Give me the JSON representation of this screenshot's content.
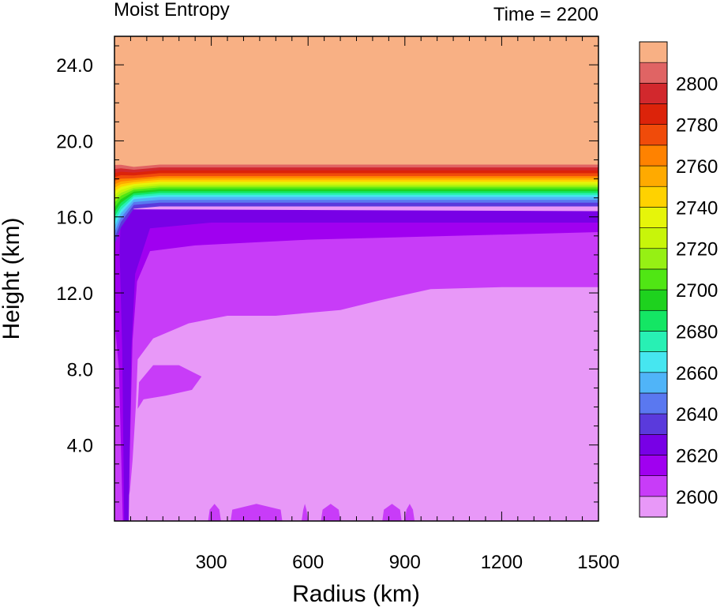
{
  "chart_data": {
    "type": "filled-contour",
    "title_left": "Moist Entropy",
    "title_right": "Time = 2200",
    "xlabel": "Radius (km)",
    "ylabel": "Height (km)",
    "xlim": [
      0,
      1500
    ],
    "ylim": [
      0,
      25.5
    ],
    "xticks": [
      300,
      600,
      900,
      1200,
      1500
    ],
    "xtick_labels": [
      "300",
      "600",
      "900",
      "1200",
      "1500"
    ],
    "yticks": [
      4,
      8,
      12,
      16,
      20,
      24
    ],
    "ytick_labels": [
      "4.0",
      "8.0",
      "12.0",
      "16.0",
      "20.0",
      "24.0"
    ],
    "colorbar": {
      "levels_bottom_to_top": [
        2595,
        2605,
        2615,
        2625,
        2635,
        2645,
        2655,
        2665,
        2675,
        2685,
        2695,
        2705,
        2715,
        2725,
        2735,
        2745,
        2755,
        2765,
        2775,
        2785,
        2795,
        2805
      ],
      "colors_bottom_to_top": [
        "#e898f8",
        "#c83cf8",
        "#a000f0",
        "#7800e6",
        "#5a3adc",
        "#5a78f0",
        "#50b4f8",
        "#46e6f0",
        "#28f0b4",
        "#14e664",
        "#1ed21e",
        "#50e614",
        "#96f014",
        "#c8f50a",
        "#e6f50a",
        "#ffd200",
        "#ffaa00",
        "#ff8200",
        "#f04b0a",
        "#dc230a",
        "#d2282d",
        "#e06464",
        "#f8b084"
      ],
      "labels": [
        "2600",
        "2620",
        "2640",
        "2660",
        "2680",
        "2700",
        "2720",
        "2740",
        "2760",
        "2780",
        "2800"
      ]
    }
  }
}
